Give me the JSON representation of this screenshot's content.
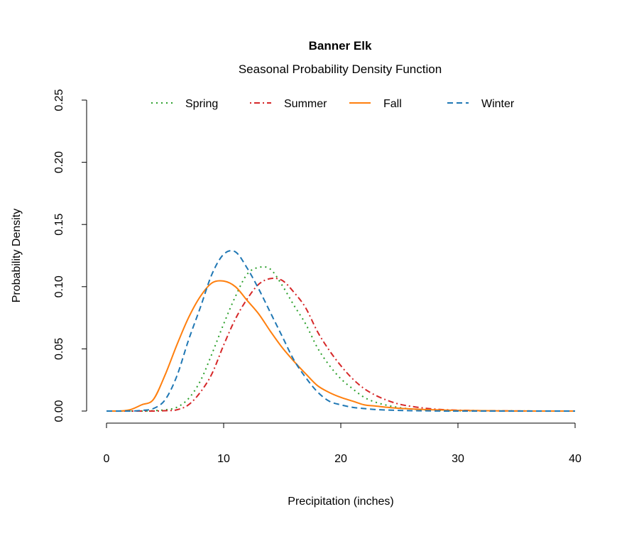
{
  "chart_data": {
    "type": "line",
    "title": "Banner Elk",
    "subtitle": "Seasonal Probability Density Function",
    "xlabel": "Precipitation (inches)",
    "ylabel": "Probability Density",
    "xlim": [
      0,
      40
    ],
    "ylim": [
      0,
      0.25
    ],
    "x_ticks": [
      "0",
      "10",
      "20",
      "30",
      "40"
    ],
    "y_ticks": [
      "0.00",
      "0.05",
      "0.10",
      "0.15",
      "0.20",
      "0.25"
    ],
    "grid": false,
    "legend_position": "top",
    "x": [
      0,
      1,
      2,
      3,
      4,
      5,
      6,
      7,
      8,
      9,
      10,
      11,
      12,
      13,
      14,
      15,
      16,
      17,
      18,
      19,
      20,
      21,
      22,
      23,
      24,
      25,
      26,
      27,
      28,
      29,
      30,
      31,
      32,
      33,
      34,
      35,
      36,
      37,
      38,
      39,
      40
    ],
    "series": [
      {
        "name": "Spring",
        "color": "#2ca02c",
        "dash": "dotted",
        "values": [
          0,
          0,
          0,
          0,
          0.0003,
          0.001,
          0.003,
          0.01,
          0.024,
          0.046,
          0.07,
          0.092,
          0.11,
          0.1155,
          0.114,
          0.101,
          0.085,
          0.07,
          0.051,
          0.037,
          0.026,
          0.018,
          0.011,
          0.007,
          0.0045,
          0.0028,
          0.0017,
          0.001,
          0.0006,
          0.0004,
          0.0002,
          0.00015,
          0.0001,
          5e-05,
          0,
          0,
          0,
          0,
          0,
          0,
          0
        ]
      },
      {
        "name": "Summer",
        "color": "#d62728",
        "dash": "dotdash",
        "values": [
          0,
          0,
          0,
          0,
          0,
          0.0003,
          0.001,
          0.005,
          0.015,
          0.03,
          0.053,
          0.074,
          0.09,
          0.102,
          0.1065,
          0.105,
          0.0955,
          0.083,
          0.064,
          0.049,
          0.0365,
          0.026,
          0.018,
          0.0125,
          0.0085,
          0.0055,
          0.0038,
          0.0025,
          0.0016,
          0.001,
          0.0007,
          0.0005,
          0.0003,
          0.0002,
          0.00015,
          0.0001,
          5e-05,
          0,
          0,
          0,
          0
        ]
      },
      {
        "name": "Fall",
        "color": "#ff7f0e",
        "dash": "solid",
        "values": [
          0,
          0,
          0.001,
          0.005,
          0.0093,
          0.029,
          0.053,
          0.075,
          0.092,
          0.103,
          0.1045,
          0.1,
          0.089,
          0.078,
          0.064,
          0.051,
          0.04,
          0.03,
          0.0205,
          0.015,
          0.011,
          0.008,
          0.005,
          0.004,
          0.003,
          0.0022,
          0.0017,
          0.0013,
          0.001,
          0.0007,
          0.0005,
          0.0004,
          0.0003,
          0.0002,
          0.00015,
          0.0001,
          5e-05,
          0,
          0,
          0,
          0
        ]
      },
      {
        "name": "Winter",
        "color": "#1f77b4",
        "dash": "dashed",
        "values": [
          0,
          0,
          0,
          0.0005,
          0.002,
          0.009,
          0.028,
          0.057,
          0.083,
          0.11,
          0.126,
          0.128,
          0.115,
          0.098,
          0.079,
          0.06,
          0.041,
          0.027,
          0.0155,
          0.008,
          0.005,
          0.003,
          0.002,
          0.0012,
          0.0008,
          0.0005,
          0.0003,
          0.0002,
          0.0001,
          0,
          0,
          0,
          0,
          0,
          0,
          0,
          0,
          0,
          0,
          0,
          0
        ]
      }
    ]
  }
}
